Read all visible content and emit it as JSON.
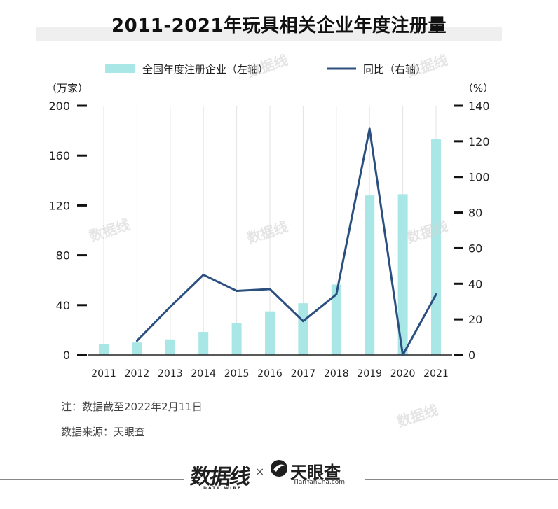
{
  "header": {
    "title": "2011-2021年玩具相关企业年度注册量"
  },
  "chart_data": {
    "type": "bar",
    "title": "2011-2021年玩具相关企业年度注册量",
    "categories": [
      "2011",
      "2012",
      "2013",
      "2014",
      "2015",
      "2016",
      "2017",
      "2018",
      "2019",
      "2020",
      "2021"
    ],
    "series": [
      {
        "name": "全国年度注册企业（左轴）",
        "type": "bar",
        "axis": "left",
        "values": [
          9,
          10,
          12.5,
          18.5,
          25.5,
          35,
          41.5,
          56.5,
          128,
          129,
          173
        ],
        "color": "#a9e6e6"
      },
      {
        "name": "同比（右轴）",
        "type": "line",
        "axis": "right",
        "values": [
          null,
          8,
          27,
          45,
          36,
          37,
          19,
          34,
          127,
          0,
          34
        ],
        "color": "#2b4f7e"
      }
    ],
    "y_left": {
      "label": "（万家）",
      "ylim": [
        0,
        200
      ],
      "ticks": [
        "0",
        "40",
        "80",
        "120",
        "160",
        "200"
      ]
    },
    "y_right": {
      "label": "（%）",
      "ylim": [
        0,
        140
      ],
      "ticks": [
        "0",
        "20",
        "40",
        "60",
        "80",
        "100",
        "120",
        "140"
      ]
    },
    "grid": "vertical",
    "legend": "top"
  },
  "notes": {
    "note": "注：数据截至2022年2月11日",
    "source": "数据来源：天眼查"
  },
  "footer": {
    "brand_left": "数据线",
    "brand_left_sub": "DATA WIRE",
    "separator": "×",
    "brand_right": "天眼查",
    "brand_right_sub": "TianYanCha.com"
  },
  "watermark": "数据线"
}
